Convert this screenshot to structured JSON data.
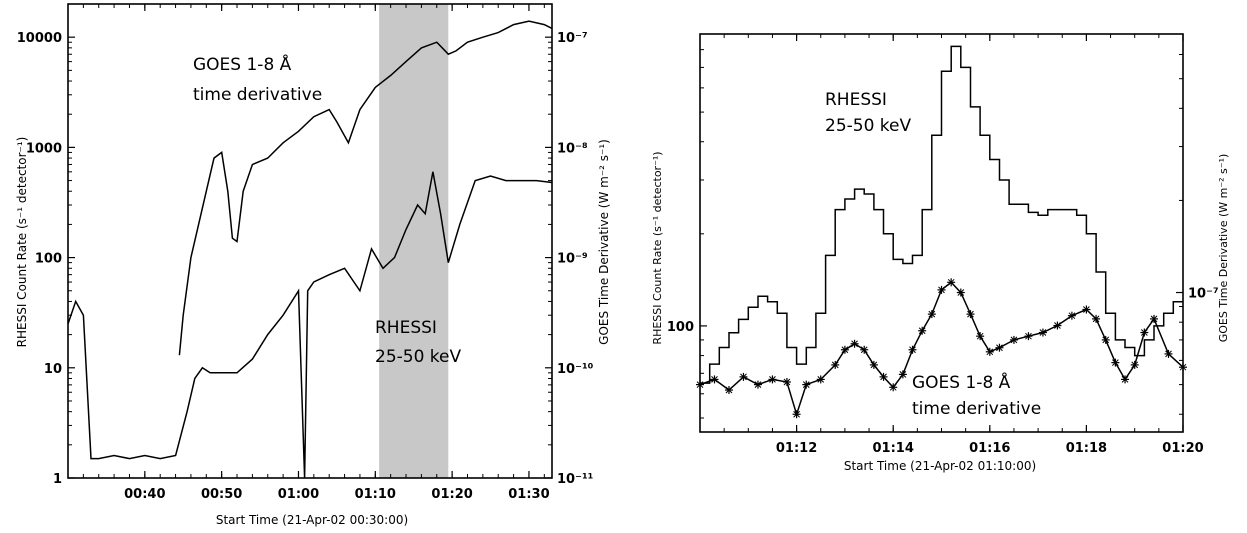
{
  "chart_data": [
    {
      "type": "line",
      "xlabel": "Start Time (21-Apr-02 00:30:00)",
      "ylabel": "RHESSI Count Rate (s⁻¹ detector⁻¹)",
      "y2label": "GOES Time Derivative (W m⁻² s⁻¹)",
      "ylog": true,
      "y2log": true,
      "xlim_min": [
        30,
        93
      ],
      "ylim": [
        1,
        20000
      ],
      "y2lim": [
        1e-11,
        2e-07
      ],
      "x_tick_labels": [
        "00:40",
        "00:50",
        "01:00",
        "01:10",
        "01:20",
        "01:30"
      ],
      "x_tick_values_min": [
        40,
        50,
        60,
        70,
        80,
        90
      ],
      "y_tick_labels": [
        "1",
        "10",
        "100",
        "1000",
        "10000"
      ],
      "y_tick_values": [
        1,
        10,
        100,
        1000,
        10000
      ],
      "y2_tick_labels": [
        "10⁻¹¹",
        "10⁻¹⁰",
        "10⁻⁹",
        "10⁻⁸",
        "10⁻⁷"
      ],
      "y2_tick_values": [
        1e-11,
        1e-10,
        1e-09,
        1e-08,
        1e-07
      ],
      "shaded_region_min": [
        70.5,
        79.5
      ],
      "annotations": [
        {
          "line1": "GOES 1-8 Å",
          "line2": "time derivative"
        },
        {
          "line1": "RHESSI",
          "line2": "25-50 keV"
        }
      ],
      "series": [
        {
          "label": "GOES 1-8 Å time derivative",
          "axis": "right",
          "x_min": [
            44.5,
            45,
            46,
            47,
            48,
            49,
            50,
            50.8,
            51.4,
            52,
            52.8,
            54,
            56,
            58,
            60,
            62,
            64,
            65,
            66.5,
            68,
            70,
            72,
            74,
            76,
            78,
            79.5,
            80.5,
            82,
            84,
            86,
            88,
            90,
            92,
            93
          ],
          "y": [
            1.3e-10,
            3e-10,
            1e-09,
            2e-09,
            4e-09,
            8e-09,
            9e-09,
            4e-09,
            1.5e-09,
            1.4e-09,
            4e-09,
            7e-09,
            8e-09,
            1.1e-08,
            1.4e-08,
            1.9e-08,
            2.2e-08,
            1.7e-08,
            1.1e-08,
            2.2e-08,
            3.5e-08,
            4.5e-08,
            6e-08,
            8e-08,
            9e-08,
            7e-08,
            7.5e-08,
            9e-08,
            1e-07,
            1.1e-07,
            1.3e-07,
            1.4e-07,
            1.3e-07,
            1.2e-07
          ]
        },
        {
          "label": "RHESSI 25-50 keV",
          "axis": "left",
          "x_min": [
            30,
            31,
            32,
            33,
            34,
            36,
            38,
            40,
            42,
            44,
            45.5,
            46.5,
            47.5,
            48.5,
            50,
            52,
            54,
            56,
            58,
            60,
            60.8,
            61.2,
            62,
            64,
            66,
            68,
            69.5,
            71,
            72.5,
            74,
            75.5,
            76.5,
            77.5,
            78.5,
            79.5,
            81,
            83,
            85,
            87,
            89,
            91,
            93
          ],
          "y": [
            25,
            40,
            30,
            1.5,
            1.5,
            1.6,
            1.5,
            1.6,
            1.5,
            1.6,
            4,
            8,
            10,
            9,
            9,
            9,
            12,
            20,
            30,
            50,
            1,
            50,
            60,
            70,
            80,
            50,
            120,
            80,
            100,
            180,
            300,
            250,
            600,
            250,
            90,
            200,
            500,
            550,
            500,
            500,
            500,
            480
          ]
        }
      ]
    },
    {
      "type": "line",
      "xlabel": "Start Time (21-Apr-02 01:10:00)",
      "ylabel": "RHESSI Count Rate (s⁻¹ detector⁻¹)",
      "y2label": "GOES Time Derivative (W m⁻² s⁻¹)",
      "ylog": true,
      "y2log": true,
      "xlim_min": [
        70,
        80
      ],
      "ylim": [
        45,
        900
      ],
      "y2lim": [
        3.5e-08,
        7e-07
      ],
      "x_tick_labels": [
        "01:12",
        "01:14",
        "01:16",
        "01:18",
        "01:20"
      ],
      "x_tick_values_min": [
        72,
        74,
        76,
        78,
        80
      ],
      "y_tick_labels": [
        "100"
      ],
      "y_tick_values": [
        100
      ],
      "y2_tick_labels": [
        "10⁻⁷"
      ],
      "y2_tick_values": [
        1e-07
      ],
      "annotations": [
        {
          "line1": "RHESSI",
          "line2": "25-50 keV"
        },
        {
          "line1": "GOES 1-8 Å",
          "line2": "time derivative"
        }
      ],
      "series": [
        {
          "label": "RHESSI 25-50 keV",
          "axis": "left",
          "x_min": [
            70,
            70.2,
            70.4,
            70.6,
            70.8,
            71.0,
            71.2,
            71.4,
            71.6,
            71.8,
            72.0,
            72.2,
            72.4,
            72.6,
            72.8,
            73.0,
            73.2,
            73.4,
            73.6,
            73.8,
            74.0,
            74.2,
            74.4,
            74.6,
            74.8,
            75.0,
            75.2,
            75.4,
            75.6,
            75.8,
            76.0,
            76.2,
            76.4,
            76.6,
            76.8,
            77.0,
            77.2,
            77.4,
            77.6,
            77.8,
            78.0,
            78.2,
            78.4,
            78.6,
            78.8,
            79.0,
            79.2,
            79.4,
            79.6,
            79.8,
            80.0
          ],
          "y": [
            65,
            75,
            85,
            95,
            105,
            115,
            125,
            120,
            110,
            85,
            75,
            85,
            110,
            170,
            240,
            260,
            280,
            270,
            240,
            200,
            165,
            160,
            170,
            240,
            420,
            680,
            820,
            700,
            520,
            420,
            350,
            300,
            250,
            250,
            235,
            230,
            240,
            240,
            240,
            230,
            200,
            150,
            110,
            90,
            85,
            80,
            90,
            100,
            110,
            120,
            120
          ]
        },
        {
          "label": "GOES 1-8 Å time derivative",
          "axis": "right",
          "x_min": [
            70,
            70.3,
            70.6,
            70.9,
            71.2,
            71.5,
            71.8,
            72.0,
            72.2,
            72.5,
            72.8,
            73.0,
            73.2,
            73.4,
            73.6,
            73.8,
            74.0,
            74.2,
            74.4,
            74.6,
            74.8,
            75.0,
            75.2,
            75.4,
            75.6,
            75.8,
            76.0,
            76.2,
            76.5,
            76.8,
            77.1,
            77.4,
            77.7,
            78.0,
            78.2,
            78.4,
            78.6,
            78.8,
            79.0,
            79.2,
            79.4,
            79.7,
            80.0
          ],
          "y": [
            5e-08,
            5.2e-08,
            4.8e-08,
            5.3e-08,
            5e-08,
            5.2e-08,
            5.1e-08,
            4e-08,
            5e-08,
            5.2e-08,
            5.8e-08,
            6.5e-08,
            6.8e-08,
            6.5e-08,
            5.8e-08,
            5.3e-08,
            4.9e-08,
            5.4e-08,
            6.5e-08,
            7.5e-08,
            8.5e-08,
            1.02e-07,
            1.08e-07,
            1e-07,
            8.5e-08,
            7.2e-08,
            6.4e-08,
            6.6e-08,
            7e-08,
            7.2e-08,
            7.4e-08,
            7.8e-08,
            8.4e-08,
            8.8e-08,
            8.2e-08,
            7e-08,
            5.9e-08,
            5.2e-08,
            5.8e-08,
            7.4e-08,
            8.2e-08,
            6.3e-08,
            5.7e-08
          ]
        }
      ]
    }
  ]
}
